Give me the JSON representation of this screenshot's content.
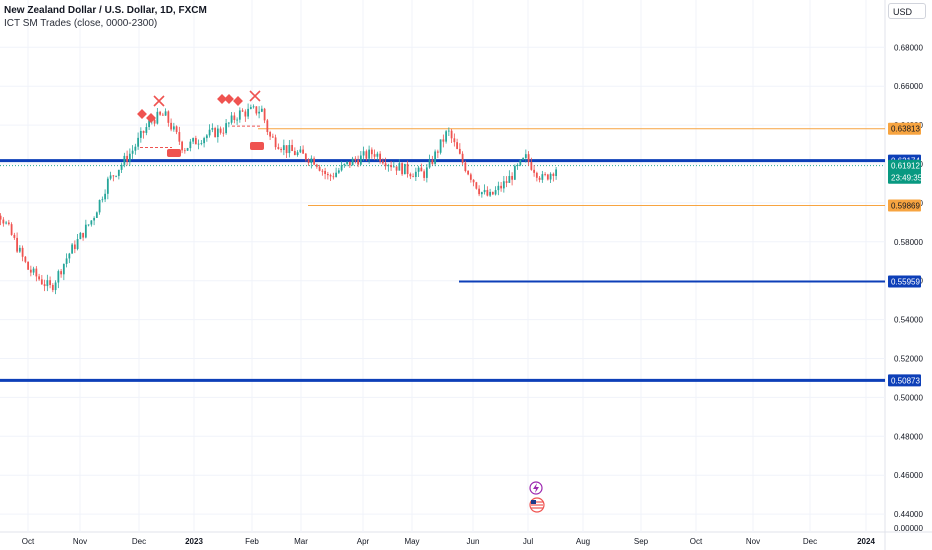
{
  "header": {
    "title": "New Zealand Dollar / U.S. Dollar, 1D, FXCM",
    "indicator": "ICT SM Trades (close, 0000-2300)"
  },
  "currency": "USD",
  "colors": {
    "up": "#26a69a",
    "down": "#ef5350",
    "level_blue": "#0d3fb8",
    "level_orange": "#f7a440",
    "grid": "#f0f3fa",
    "current_badge": "#089981"
  },
  "price_axis": {
    "ticks": [
      "0.68000",
      "0.66000",
      "0.64000",
      "0.62000",
      "0.60000",
      "0.58000",
      "0.56000",
      "0.54000",
      "0.52000",
      "0.50000",
      "0.48000",
      "0.46000",
      "0.44000",
      "0.00000"
    ]
  },
  "time_axis": {
    "labels": [
      "Oct",
      "Nov",
      "Dec",
      "2023",
      "Feb",
      "Mar",
      "Apr",
      "May",
      "Jun",
      "Jul",
      "Aug",
      "Sep",
      "Oct",
      "Nov",
      "Dec",
      "2024"
    ]
  },
  "badges": {
    "orange_top": "0.63813",
    "blue_top": "0.62174",
    "current_price": "0.61912",
    "countdown": "23:49:35",
    "orange_bottom": "0.59869",
    "blue_mid": "0.55959",
    "blue_low": "0.50873"
  },
  "levels": [
    {
      "name": "blue-top",
      "price": 0.62174,
      "color": "blue",
      "from": "start",
      "width": 3
    },
    {
      "name": "orange-top",
      "price": 0.63813,
      "color": "orange",
      "from": "Feb",
      "width": 1
    },
    {
      "name": "orange-bottom",
      "price": 0.59869,
      "color": "orange",
      "from": "Mar",
      "width": 1
    },
    {
      "name": "blue-mid",
      "price": 0.55959,
      "color": "blue",
      "from": "Jun",
      "width": 2
    },
    {
      "name": "blue-low",
      "price": 0.50873,
      "color": "blue",
      "from": "start",
      "width": 3
    }
  ],
  "chart_data": {
    "type": "candlestick",
    "title": "New Zealand Dollar / U.S. Dollar, 1D, FXCM",
    "ylim": [
      0.424,
      0.688
    ],
    "y_axis_ticks": [
      0.68,
      0.66,
      0.64,
      0.62,
      0.6,
      0.58,
      0.56,
      0.54,
      0.52,
      0.5,
      0.48,
      0.46,
      0.44
    ],
    "close_path": [
      {
        "date": "2022-09-05",
        "close": 0.613
      },
      {
        "date": "2022-09-20",
        "close": 0.588
      },
      {
        "date": "2022-10-01",
        "close": 0.566
      },
      {
        "date": "2022-10-08",
        "close": 0.56
      },
      {
        "date": "2022-10-13",
        "close": 0.556
      },
      {
        "date": "2022-10-22",
        "close": 0.573
      },
      {
        "date": "2022-11-04",
        "close": 0.592
      },
      {
        "date": "2022-11-12",
        "close": 0.611
      },
      {
        "date": "2022-11-25",
        "close": 0.627
      },
      {
        "date": "2022-12-05",
        "close": 0.643
      },
      {
        "date": "2022-12-12",
        "close": 0.645
      },
      {
        "date": "2022-12-22",
        "close": 0.628
      },
      {
        "date": "2023-01-01",
        "close": 0.634
      },
      {
        "date": "2023-01-12",
        "close": 0.638
      },
      {
        "date": "2023-01-20",
        "close": 0.646
      },
      {
        "date": "2023-02-01",
        "close": 0.648
      },
      {
        "date": "2023-02-05",
        "close": 0.634
      },
      {
        "date": "2023-02-15",
        "close": 0.627
      },
      {
        "date": "2023-03-01",
        "close": 0.622
      },
      {
        "date": "2023-03-08",
        "close": 0.613
      },
      {
        "date": "2023-03-20",
        "close": 0.621
      },
      {
        "date": "2023-04-01",
        "close": 0.626
      },
      {
        "date": "2023-04-10",
        "close": 0.62
      },
      {
        "date": "2023-04-20",
        "close": 0.616
      },
      {
        "date": "2023-04-28",
        "close": 0.615
      },
      {
        "date": "2023-05-10",
        "close": 0.637
      },
      {
        "date": "2023-05-17",
        "close": 0.622
      },
      {
        "date": "2023-05-27",
        "close": 0.606
      },
      {
        "date": "2023-06-01",
        "close": 0.603
      },
      {
        "date": "2023-06-10",
        "close": 0.611
      },
      {
        "date": "2023-06-20",
        "close": 0.623
      },
      {
        "date": "2023-06-29",
        "close": 0.612
      },
      {
        "date": "2023-07-07",
        "close": 0.619
      }
    ]
  }
}
